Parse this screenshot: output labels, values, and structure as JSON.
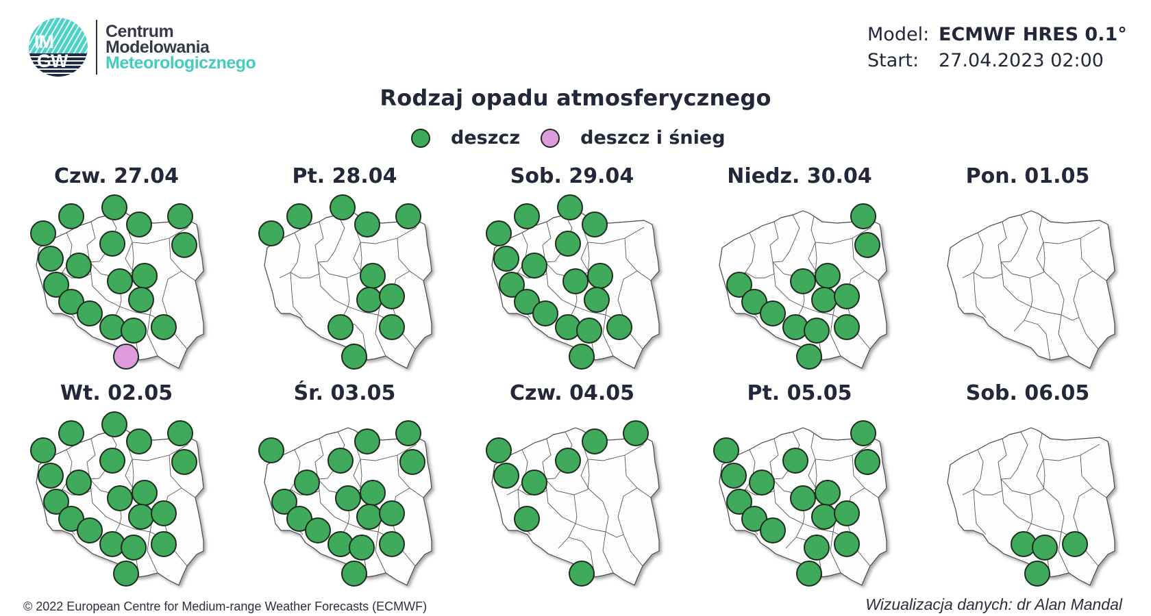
{
  "logo": {
    "mark_top": "IM",
    "mark_bottom": "GW",
    "line1": "Centrum",
    "line2": "Modelowania",
    "line3": "Meteorologicznego"
  },
  "meta": {
    "model_label": "Model:",
    "model_value": "ECMWF HRES 0.1°",
    "start_label": "Start:",
    "start_value": "27.04.2023 02:00"
  },
  "title": "Rodzaj opadu atmosferycznego",
  "legend": [
    {
      "label": "deszcz",
      "color": "#3faa5c",
      "icon": "green-circle-icon"
    },
    {
      "label": "deszcz i śnieg",
      "color": "#de9cde",
      "icon": "pink-circle-icon"
    }
  ],
  "colors": {
    "rain": "#3faa5c",
    "rain_snow": "#de9cde",
    "map_fill": "#fdfdfd",
    "map_border": "#4a4a4a",
    "text": "#22273a"
  },
  "stations": {
    "s1": [
      0.1,
      0.21
    ],
    "s2": [
      0.25,
      0.11
    ],
    "s3": [
      0.48,
      0.06
    ],
    "s4": [
      0.61,
      0.16
    ],
    "s5": [
      0.83,
      0.11
    ],
    "s6": [
      0.85,
      0.28
    ],
    "s7": [
      0.47,
      0.27
    ],
    "s8": [
      0.14,
      0.36
    ],
    "s9": [
      0.29,
      0.4
    ],
    "s10": [
      0.64,
      0.46
    ],
    "s11": [
      0.17,
      0.51
    ],
    "s12": [
      0.51,
      0.49
    ],
    "s13": [
      0.25,
      0.61
    ],
    "s14": [
      0.62,
      0.6
    ],
    "s15": [
      0.35,
      0.68
    ],
    "s16": [
      0.47,
      0.76
    ],
    "s17": [
      0.58,
      0.78
    ],
    "s18": [
      0.74,
      0.76
    ],
    "s19": [
      0.54,
      0.93
    ],
    "s20": [
      0.74,
      0.58
    ]
  },
  "days": [
    {
      "label": "Czw. 27.04",
      "rain": [
        "s1",
        "s2",
        "s3",
        "s4",
        "s5",
        "s6",
        "s7",
        "s8",
        "s9",
        "s10",
        "s11",
        "s12",
        "s13",
        "s14",
        "s15",
        "s16",
        "s17",
        "s18"
      ],
      "rain_snow": [
        "s19"
      ]
    },
    {
      "label": "Pt. 28.04",
      "rain": [
        "s1",
        "s2",
        "s3",
        "s4",
        "s5",
        "s10",
        "s14",
        "s20",
        "s16",
        "s18",
        "s19"
      ],
      "rain_snow": []
    },
    {
      "label": "Sob. 29.04",
      "rain": [
        "s1",
        "s2",
        "s3",
        "s4",
        "s7",
        "s8",
        "s9",
        "s10",
        "s11",
        "s12",
        "s13",
        "s14",
        "s15",
        "s16",
        "s17",
        "s18",
        "s19"
      ],
      "rain_snow": []
    },
    {
      "label": "Niedz. 30.04",
      "rain": [
        "s5",
        "s6",
        "s10",
        "s11",
        "s12",
        "s13",
        "s14",
        "s20",
        "s15",
        "s16",
        "s17",
        "s18",
        "s19"
      ],
      "rain_snow": []
    },
    {
      "label": "Pon. 01.05",
      "rain": [],
      "rain_snow": []
    },
    {
      "label": "Wt. 02.05",
      "rain": [
        "s1",
        "s2",
        "s3",
        "s4",
        "s5",
        "s6",
        "s7",
        "s8",
        "s9",
        "s10",
        "s11",
        "s12",
        "s13",
        "s14",
        "s20",
        "s15",
        "s16",
        "s17",
        "s18",
        "s19"
      ],
      "rain_snow": []
    },
    {
      "label": "Śr. 03.05",
      "rain": [
        "s1",
        "s4",
        "s5",
        "s6",
        "s7",
        "s9",
        "s10",
        "s11",
        "s12",
        "s13",
        "s14",
        "s20",
        "s15",
        "s16",
        "s17",
        "s18",
        "s19"
      ],
      "rain_snow": []
    },
    {
      "label": "Czw. 04.05",
      "rain": [
        "s1",
        "s4",
        "s5",
        "s7",
        "s8",
        "s9",
        "s13",
        "s19"
      ],
      "rain_snow": []
    },
    {
      "label": "Pt. 05.05",
      "rain": [
        "s1",
        "s5",
        "s6",
        "s7",
        "s8",
        "s9",
        "s10",
        "s11",
        "s12",
        "s13",
        "s14",
        "s20",
        "s15",
        "s17",
        "s18",
        "s19"
      ],
      "rain_snow": []
    },
    {
      "label": "Sob. 06.05",
      "rain": [
        "s16",
        "s17",
        "s18",
        "s19"
      ],
      "rain_snow": []
    }
  ],
  "footer": {
    "copyright": "© 2022 European Centre for Medium-range Weather Forecasts (ECMWF)",
    "credit": "Wizualizacja danych: dr Alan Mandal"
  }
}
